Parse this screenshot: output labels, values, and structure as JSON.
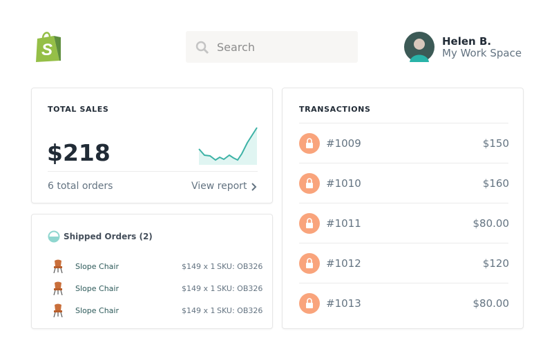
{
  "header": {
    "search_placeholder": "Search",
    "user_name": "Helen B.",
    "workspace": "My Work Space"
  },
  "total_sales": {
    "title": "TOTAL SALES",
    "amount": "$218",
    "orders": "6 total orders",
    "link": "View report"
  },
  "shipped_orders": {
    "title": "Shipped Orders (2)",
    "items": [
      {
        "name": "Slope Chair",
        "price": "$149 x 1",
        "sku": "SKU: OB326"
      },
      {
        "name": "Slope Chair",
        "price": "$149 x 1",
        "sku": "SKU: OB326"
      },
      {
        "name": "Slope Chair",
        "price": "$149 x 1",
        "sku": "SKU: OB326"
      }
    ]
  },
  "transactions": {
    "title": "TRANSACTIONS",
    "rows": [
      {
        "id": "#1009",
        "amount": "$150"
      },
      {
        "id": "#1010",
        "amount": "$160"
      },
      {
        "id": "#1011",
        "amount": "$80.00"
      },
      {
        "id": "#1012",
        "amount": "$120"
      },
      {
        "id": "#1013",
        "amount": "$80.00"
      }
    ]
  }
}
